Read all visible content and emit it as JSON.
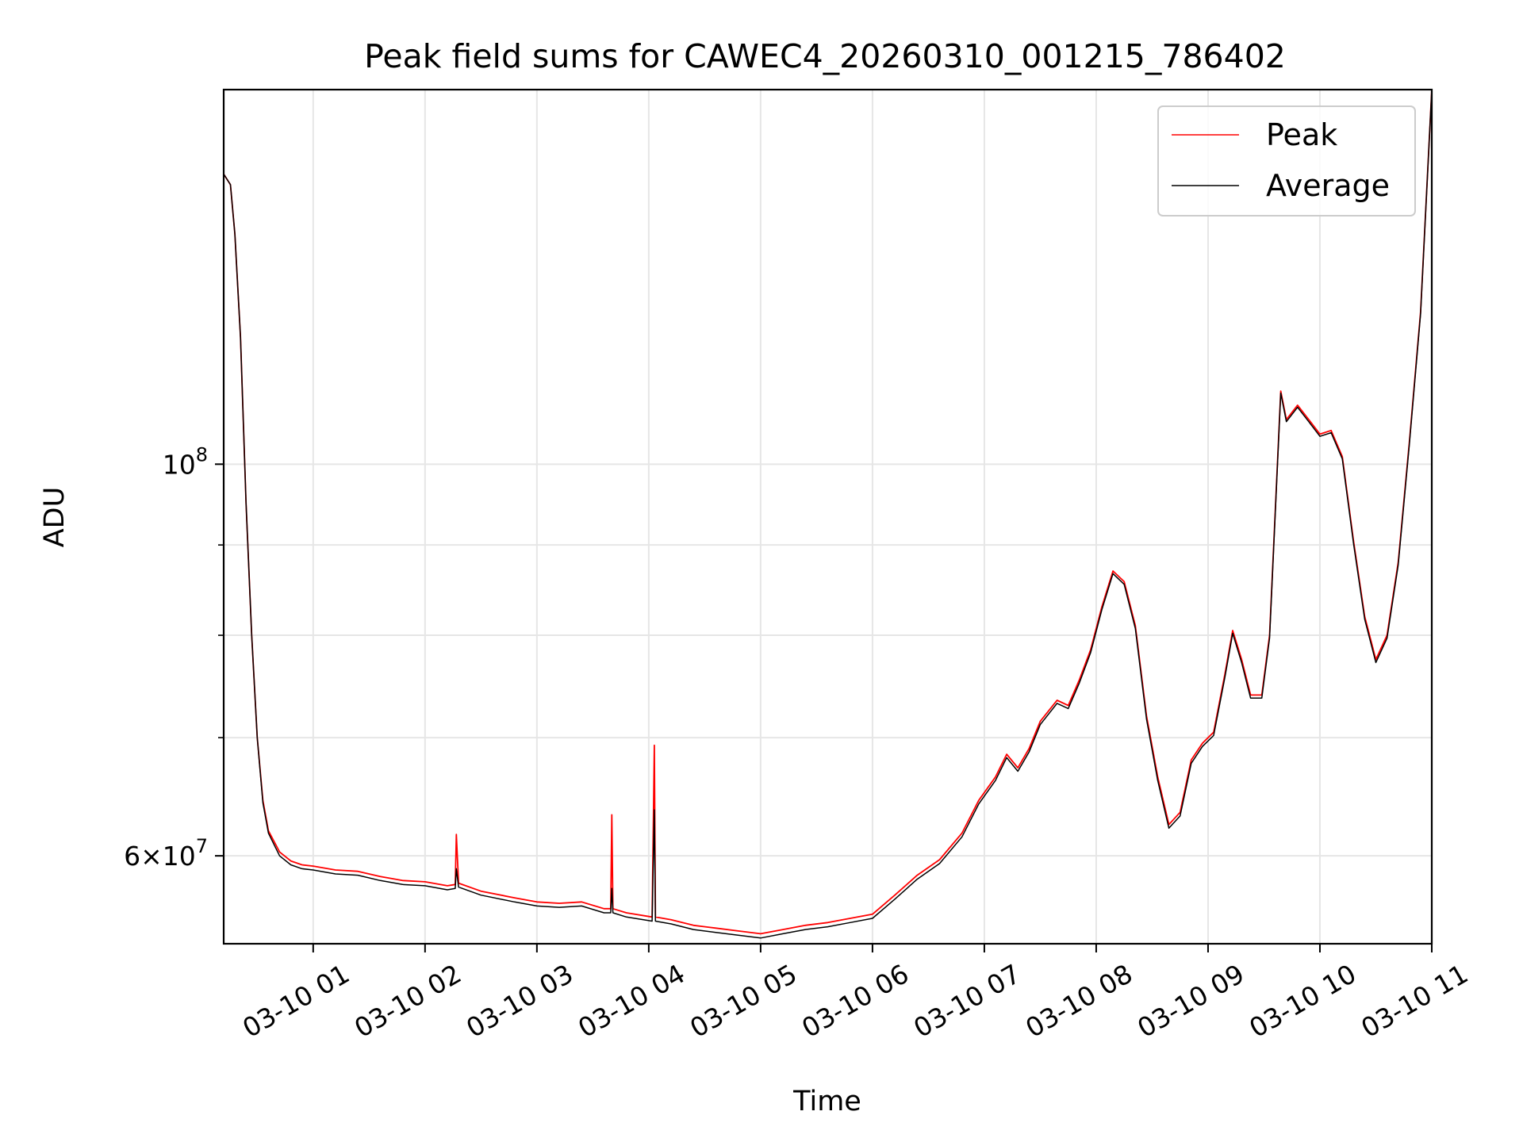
{
  "chart_data": {
    "type": "line",
    "title": "Peak field sums for CAWEC4_20260310_001215_786402",
    "xlabel": "Time",
    "ylabel": "ADU",
    "x_unit": "hours since 03-10 00:00",
    "xlim": [
      0.2,
      11.0
    ],
    "ylim": [
      53500000,
      163000000
    ],
    "yscale": "log",
    "grid": true,
    "legend_position": "top-right",
    "x_ticks": [
      {
        "value": 1,
        "label": "03-10 01"
      },
      {
        "value": 2,
        "label": "03-10 02"
      },
      {
        "value": 3,
        "label": "03-10 03"
      },
      {
        "value": 4,
        "label": "03-10 04"
      },
      {
        "value": 5,
        "label": "03-10 05"
      },
      {
        "value": 6,
        "label": "03-10 06"
      },
      {
        "value": 7,
        "label": "03-10 07"
      },
      {
        "value": 8,
        "label": "03-10 08"
      },
      {
        "value": 9,
        "label": "03-10 09"
      },
      {
        "value": 10,
        "label": "03-10 10"
      },
      {
        "value": 11,
        "label": "03-10 11"
      }
    ],
    "y_major_ticks": [
      {
        "value": 60000000,
        "mantissa": "6",
        "base": "10",
        "exp": "7"
      },
      {
        "value": 100000000,
        "mantissa": "",
        "base": "10",
        "exp": "8"
      }
    ],
    "y_minor_ticks": [
      70000000,
      80000000,
      90000000
    ],
    "series": [
      {
        "name": "Peak",
        "color": "#ff0000",
        "points": [
          [
            0.2,
            146000000
          ],
          [
            0.26,
            144000000
          ],
          [
            0.3,
            135000000
          ],
          [
            0.35,
            118000000
          ],
          [
            0.4,
            95000000
          ],
          [
            0.45,
            80000000
          ],
          [
            0.5,
            70000000
          ],
          [
            0.55,
            64500000
          ],
          [
            0.6,
            62000000
          ],
          [
            0.7,
            60300000
          ],
          [
            0.8,
            59600000
          ],
          [
            0.9,
            59300000
          ],
          [
            1.0,
            59200000
          ],
          [
            1.2,
            58900000
          ],
          [
            1.4,
            58800000
          ],
          [
            1.6,
            58400000
          ],
          [
            1.8,
            58100000
          ],
          [
            2.0,
            58000000
          ],
          [
            2.2,
            57700000
          ],
          [
            2.27,
            57800000
          ],
          [
            2.28,
            61700000
          ],
          [
            2.3,
            57900000
          ],
          [
            2.5,
            57300000
          ],
          [
            2.8,
            56800000
          ],
          [
            3.0,
            56500000
          ],
          [
            3.2,
            56400000
          ],
          [
            3.4,
            56500000
          ],
          [
            3.6,
            56000000
          ],
          [
            3.66,
            56000000
          ],
          [
            3.67,
            63300000
          ],
          [
            3.68,
            56000000
          ],
          [
            3.8,
            55700000
          ],
          [
            4.03,
            55400000
          ],
          [
            4.05,
            69300000
          ],
          [
            4.06,
            55400000
          ],
          [
            4.2,
            55200000
          ],
          [
            4.4,
            54800000
          ],
          [
            4.6,
            54600000
          ],
          [
            4.8,
            54400000
          ],
          [
            5.0,
            54200000
          ],
          [
            5.2,
            54500000
          ],
          [
            5.4,
            54800000
          ],
          [
            5.6,
            55000000
          ],
          [
            5.8,
            55300000
          ],
          [
            6.0,
            55600000
          ],
          [
            6.2,
            57000000
          ],
          [
            6.4,
            58500000
          ],
          [
            6.6,
            59700000
          ],
          [
            6.8,
            61800000
          ],
          [
            6.95,
            64500000
          ],
          [
            7.1,
            66500000
          ],
          [
            7.2,
            68500000
          ],
          [
            7.3,
            67300000
          ],
          [
            7.4,
            69000000
          ],
          [
            7.5,
            71500000
          ],
          [
            7.65,
            73500000
          ],
          [
            7.75,
            73000000
          ],
          [
            7.85,
            75500000
          ],
          [
            7.95,
            78500000
          ],
          [
            8.05,
            83000000
          ],
          [
            8.15,
            87000000
          ],
          [
            8.25,
            85800000
          ],
          [
            8.35,
            81000000
          ],
          [
            8.45,
            72000000
          ],
          [
            8.55,
            66500000
          ],
          [
            8.65,
            62500000
          ],
          [
            8.75,
            63500000
          ],
          [
            8.85,
            68000000
          ],
          [
            8.95,
            69500000
          ],
          [
            9.05,
            70500000
          ],
          [
            9.15,
            76000000
          ],
          [
            9.22,
            80500000
          ],
          [
            9.3,
            77500000
          ],
          [
            9.38,
            74000000
          ],
          [
            9.48,
            74000000
          ],
          [
            9.55,
            80000000
          ],
          [
            9.65,
            110000000
          ],
          [
            9.7,
            106000000
          ],
          [
            9.8,
            108000000
          ],
          [
            9.9,
            106000000
          ],
          [
            10.0,
            104000000
          ],
          [
            10.1,
            104500000
          ],
          [
            10.2,
            101000000
          ],
          [
            10.3,
            90500000
          ],
          [
            10.4,
            82000000
          ],
          [
            10.5,
            77500000
          ],
          [
            10.6,
            80000000
          ],
          [
            10.7,
            88000000
          ],
          [
            10.8,
            103000000
          ],
          [
            10.9,
            122000000
          ],
          [
            11.0,
            163000000
          ]
        ]
      },
      {
        "name": "Average",
        "color": "#000000",
        "points": [
          [
            0.2,
            146000000
          ],
          [
            0.26,
            144000000
          ],
          [
            0.3,
            135000000
          ],
          [
            0.35,
            118000000
          ],
          [
            0.4,
            95000000
          ],
          [
            0.45,
            80000000
          ],
          [
            0.5,
            70000000
          ],
          [
            0.55,
            64300000
          ],
          [
            0.6,
            61800000
          ],
          [
            0.7,
            60000000
          ],
          [
            0.8,
            59300000
          ],
          [
            0.9,
            59000000
          ],
          [
            1.0,
            58900000
          ],
          [
            1.2,
            58600000
          ],
          [
            1.4,
            58500000
          ],
          [
            1.6,
            58100000
          ],
          [
            1.8,
            57800000
          ],
          [
            2.0,
            57700000
          ],
          [
            2.2,
            57400000
          ],
          [
            2.27,
            57500000
          ],
          [
            2.28,
            59000000
          ],
          [
            2.3,
            57600000
          ],
          [
            2.5,
            57000000
          ],
          [
            2.8,
            56500000
          ],
          [
            3.0,
            56200000
          ],
          [
            3.2,
            56100000
          ],
          [
            3.4,
            56200000
          ],
          [
            3.6,
            55700000
          ],
          [
            3.66,
            55700000
          ],
          [
            3.67,
            57500000
          ],
          [
            3.68,
            55700000
          ],
          [
            3.8,
            55400000
          ],
          [
            4.03,
            55100000
          ],
          [
            4.05,
            63700000
          ],
          [
            4.06,
            55100000
          ],
          [
            4.2,
            54900000
          ],
          [
            4.4,
            54500000
          ],
          [
            4.6,
            54300000
          ],
          [
            4.8,
            54100000
          ],
          [
            5.0,
            53900000
          ],
          [
            5.2,
            54200000
          ],
          [
            5.4,
            54500000
          ],
          [
            5.6,
            54700000
          ],
          [
            5.8,
            55000000
          ],
          [
            6.0,
            55300000
          ],
          [
            6.2,
            56700000
          ],
          [
            6.4,
            58200000
          ],
          [
            6.6,
            59400000
          ],
          [
            6.8,
            61500000
          ],
          [
            6.95,
            64200000
          ],
          [
            7.1,
            66200000
          ],
          [
            7.2,
            68200000
          ],
          [
            7.3,
            67000000
          ],
          [
            7.4,
            68700000
          ],
          [
            7.5,
            71200000
          ],
          [
            7.65,
            73200000
          ],
          [
            7.75,
            72700000
          ],
          [
            7.85,
            75200000
          ],
          [
            7.95,
            78200000
          ],
          [
            8.05,
            82700000
          ],
          [
            8.15,
            86700000
          ],
          [
            8.25,
            85500000
          ],
          [
            8.35,
            80700000
          ],
          [
            8.45,
            71700000
          ],
          [
            8.55,
            66200000
          ],
          [
            8.65,
            62200000
          ],
          [
            8.75,
            63200000
          ],
          [
            8.85,
            67700000
          ],
          [
            8.95,
            69200000
          ],
          [
            9.05,
            70200000
          ],
          [
            9.15,
            75700000
          ],
          [
            9.22,
            80200000
          ],
          [
            9.3,
            77200000
          ],
          [
            9.38,
            73700000
          ],
          [
            9.48,
            73700000
          ],
          [
            9.55,
            79700000
          ],
          [
            9.65,
            109700000
          ],
          [
            9.7,
            105700000
          ],
          [
            9.8,
            107700000
          ],
          [
            9.9,
            105700000
          ],
          [
            10.0,
            103700000
          ],
          [
            10.1,
            104200000
          ],
          [
            10.2,
            100700000
          ],
          [
            10.3,
            90200000
          ],
          [
            10.4,
            81700000
          ],
          [
            10.5,
            77200000
          ],
          [
            10.6,
            79700000
          ],
          [
            10.7,
            87700000
          ],
          [
            10.8,
            102700000
          ],
          [
            10.9,
            121700000
          ],
          [
            11.0,
            163000000
          ]
        ]
      }
    ]
  }
}
